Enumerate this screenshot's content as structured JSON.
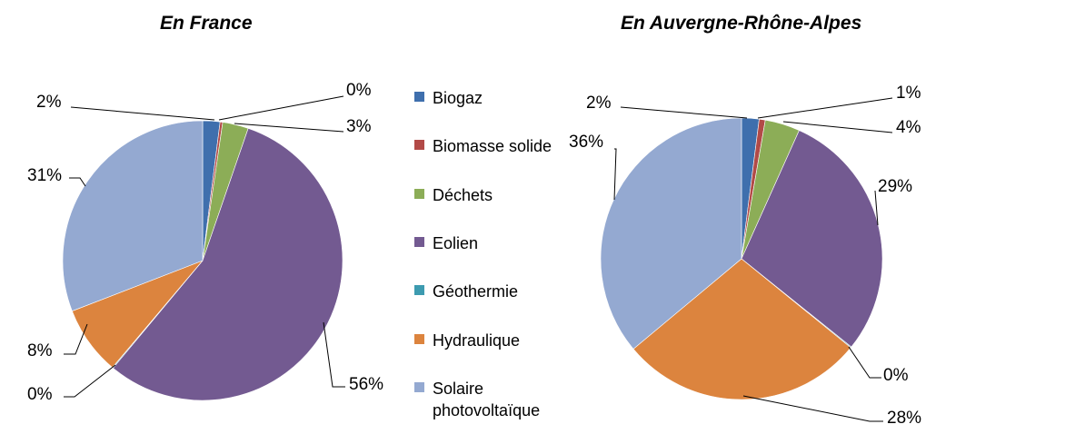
{
  "colors": {
    "Biogaz": "#3f6fad",
    "Biomasse solide": "#b24a47",
    "Déchets": "#8cad57",
    "Eolien": "#735a91",
    "Géothermie": "#3d9bb0",
    "Hydraulique": "#dc843e",
    "Solaire photovoltaïque": "#94a9d1"
  },
  "chart_data": [
    {
      "type": "pie",
      "title": "En France",
      "slices": [
        {
          "category": "Biogaz",
          "value": 2,
          "label": "2%"
        },
        {
          "category": "Biomasse solide",
          "value": 0.3,
          "label": "0%"
        },
        {
          "category": "Déchets",
          "value": 3,
          "label": "3%"
        },
        {
          "category": "Eolien",
          "value": 56,
          "label": "56%"
        },
        {
          "category": "Géothermie",
          "value": 0.1,
          "label": "0%"
        },
        {
          "category": "Hydraulique",
          "value": 8,
          "label": "8%"
        },
        {
          "category": "Solaire photovoltaïque",
          "value": 31,
          "label": "31%"
        }
      ]
    },
    {
      "type": "pie",
      "title": "En Auvergne-Rhône-Alpes",
      "slices": [
        {
          "category": "Biogaz",
          "value": 2,
          "label": "2%"
        },
        {
          "category": "Biomasse solide",
          "value": 0.7,
          "label": "1%"
        },
        {
          "category": "Déchets",
          "value": 4,
          "label": "4%"
        },
        {
          "category": "Eolien",
          "value": 29,
          "label": "29%"
        },
        {
          "category": "Géothermie",
          "value": 0.1,
          "label": "0%"
        },
        {
          "category": "Hydraulique",
          "value": 28,
          "label": "28%"
        },
        {
          "category": "Solaire photovoltaïque",
          "value": 36,
          "label": "36%"
        }
      ]
    }
  ],
  "legend": {
    "placement": "center",
    "items": [
      {
        "name": "Biogaz"
      },
      {
        "name": "Biomasse solide"
      },
      {
        "name": "Déchets"
      },
      {
        "name": "Eolien"
      },
      {
        "name": "Géothermie"
      },
      {
        "name": "Hydraulique"
      },
      {
        "name": "Solaire photovoltaïque",
        "lines": [
          "Solaire",
          "photovoltaïque"
        ]
      }
    ]
  }
}
